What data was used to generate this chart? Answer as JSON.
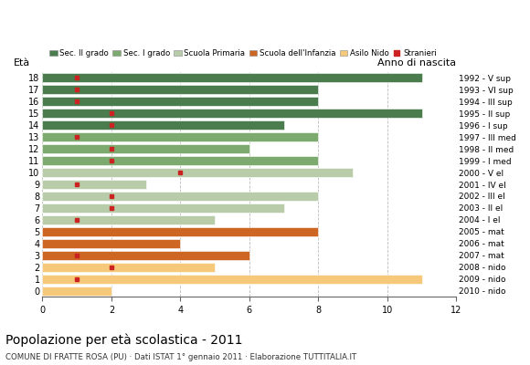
{
  "title": "Popolazione per età scolastica - 2011",
  "subtitle": "COMUNE DI FRATTE ROSA (PU) · Dati ISTAT 1° gennaio 2011 · Elaborazione TUTTITALIA.IT",
  "ylabel_left": "Età",
  "ylabel_right": "Anno di nascita",
  "x_ticks": [
    0,
    2,
    4,
    6,
    8,
    10,
    12
  ],
  "xlim": [
    0,
    12
  ],
  "ages": [
    18,
    17,
    16,
    15,
    14,
    13,
    12,
    11,
    10,
    9,
    8,
    7,
    6,
    5,
    4,
    3,
    2,
    1,
    0
  ],
  "years_by_age": {
    "18": "1992 - V sup",
    "17": "1993 - VI sup",
    "16": "1994 - III sup",
    "15": "1995 - II sup",
    "14": "1996 - I sup",
    "13": "1997 - III med",
    "12": "1998 - II med",
    "11": "1999 - I med",
    "10": "2000 - V el",
    "9": "2001 - IV el",
    "8": "2002 - III el",
    "7": "2003 - II el",
    "6": "2004 - I el",
    "5": "2005 - mat",
    "4": "2006 - mat",
    "3": "2007 - mat",
    "2": "2008 - nido",
    "1": "2009 - nido",
    "0": "2010 - nido"
  },
  "bar_values": [
    11,
    8,
    8,
    11,
    7,
    8,
    6,
    8,
    9,
    3,
    8,
    7,
    5,
    8,
    4,
    6,
    5,
    11,
    2
  ],
  "stranieri": [
    1,
    1,
    1,
    2,
    2,
    1,
    2,
    2,
    4,
    1,
    2,
    2,
    1,
    0,
    0,
    1,
    2,
    1,
    0
  ],
  "bar_colors": [
    "#4a7c4e",
    "#4a7c4e",
    "#4a7c4e",
    "#4a7c4e",
    "#4a7c4e",
    "#7daa6e",
    "#7daa6e",
    "#7daa6e",
    "#b8ccaa",
    "#b8ccaa",
    "#b8ccaa",
    "#b8ccaa",
    "#b8ccaa",
    "#cc6622",
    "#cc6622",
    "#cc6622",
    "#f5c87a",
    "#f5c87a",
    "#f5c87a"
  ],
  "legend_items": [
    {
      "label": "Sec. II grado",
      "color": "#4a7c4e",
      "type": "patch"
    },
    {
      "label": "Sec. I grado",
      "color": "#7daa6e",
      "type": "patch"
    },
    {
      "label": "Scuola Primaria",
      "color": "#b8ccaa",
      "type": "patch"
    },
    {
      "label": "Scuola dell'Infanzia",
      "color": "#cc6622",
      "type": "patch"
    },
    {
      "label": "Asilo Nido",
      "color": "#f5c87a",
      "type": "patch"
    },
    {
      "label": "Stranieri",
      "color": "#cc2222",
      "type": "marker"
    }
  ],
  "background_color": "#ffffff",
  "grid_color": "#bbbbbb"
}
